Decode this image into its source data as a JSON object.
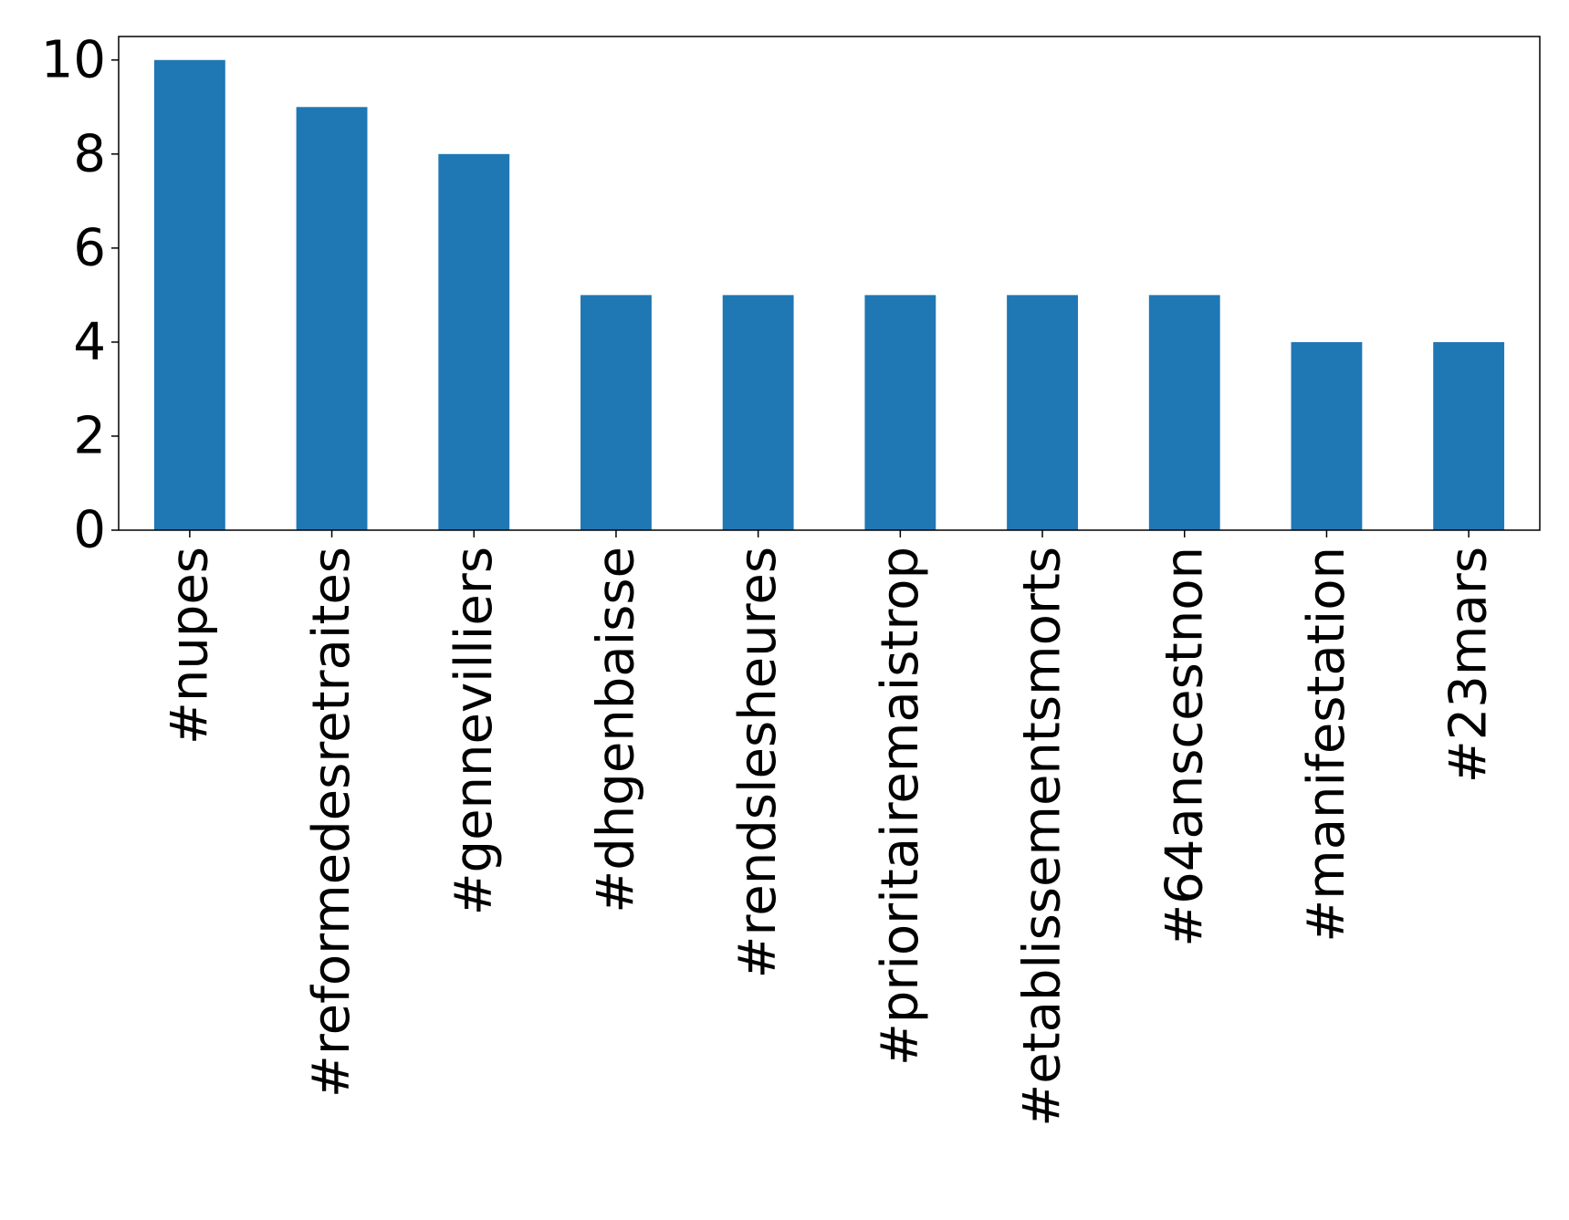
{
  "chart_data": {
    "type": "bar",
    "categories": [
      "#nupes",
      "#reformedesretraites",
      "#gennevilliers",
      "#dhgenbaisse",
      "#rendslesheures",
      "#prioritairemaistrop",
      "#etablissementsmorts",
      "#64anscestnon",
      "#manifestation",
      "#23mars"
    ],
    "values": [
      10,
      9,
      8,
      5,
      5,
      5,
      5,
      5,
      4,
      4
    ],
    "color": "#1f77b4",
    "ylim": [
      0,
      10.5
    ],
    "yticks": [
      0,
      2,
      4,
      6,
      8,
      10
    ],
    "grid": false
  }
}
